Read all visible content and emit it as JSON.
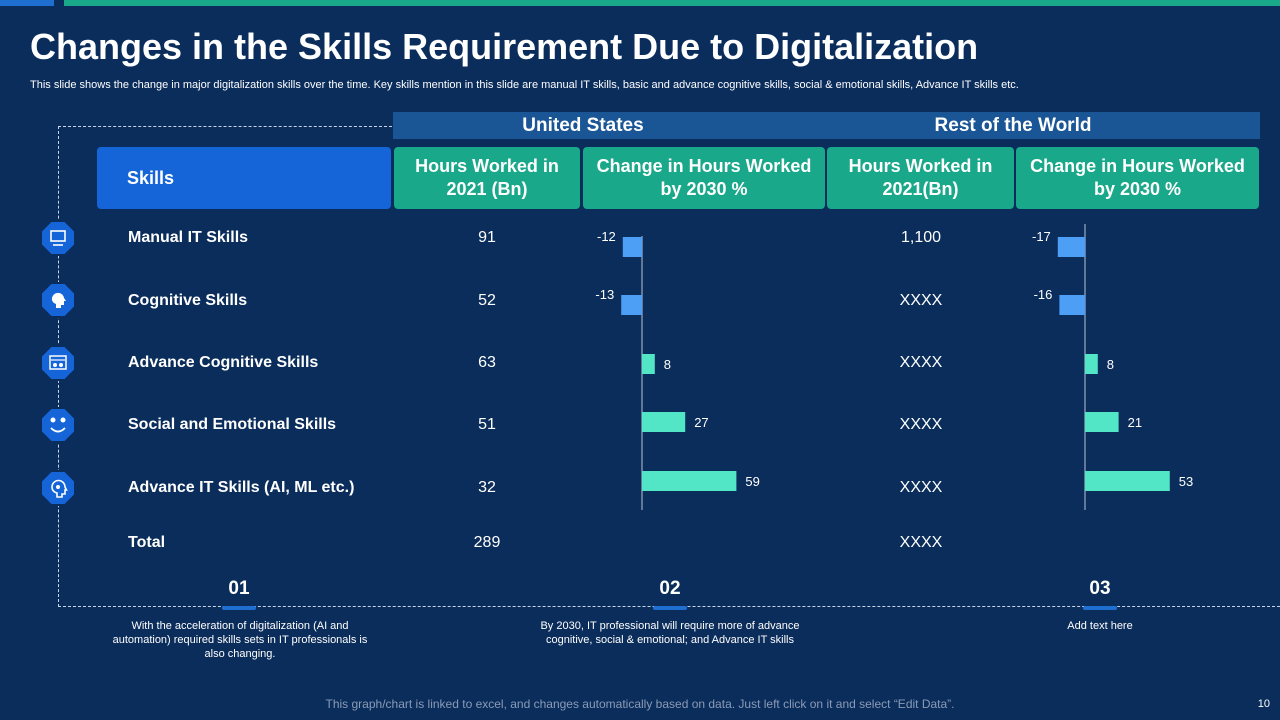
{
  "title": "Changes in the Skills Requirement Due to Digitalization",
  "subtitle": "This slide shows the change in major digitalization skills over the time. Key skills mention in this slide are manual IT skills, basic and advance cognitive skills, social & emotional skills, Advance IT skills etc.",
  "regions": {
    "us": "United States",
    "row": "Rest of the World"
  },
  "headers": {
    "skills": "Skills",
    "us_hours": "Hours Worked in 2021 (Bn)",
    "us_change": "Change in Hours Worked by 2030 %",
    "row_hours": "Hours Worked in 2021(Bn)",
    "row_change": "Change in Hours Worked by 2030 %"
  },
  "rows": [
    {
      "skill": "Manual IT Skills",
      "icon": "manual-it-icon",
      "us_hours": "91",
      "row_hours": "1,100"
    },
    {
      "skill": "Cognitive Skills",
      "icon": "brain-icon",
      "us_hours": "52",
      "row_hours": "XXXX"
    },
    {
      "skill": "Advance Cognitive Skills",
      "icon": "dashboard-icon",
      "us_hours": "63",
      "row_hours": "XXXX"
    },
    {
      "skill": "Social and Emotional Skills",
      "icon": "social-icon",
      "us_hours": "51",
      "row_hours": "XXXX"
    },
    {
      "skill": "Advance IT Skills (AI, ML etc.)",
      "icon": "ai-head-icon",
      "us_hours": "32",
      "row_hours": "XXXX"
    }
  ],
  "total": {
    "label": "Total",
    "us_hours": "289",
    "row_hours": "XXXX"
  },
  "chart_data": [
    {
      "type": "bar",
      "orientation": "horizontal",
      "title": "United States - Change in Hours Worked by 2030 %",
      "categories": [
        "Manual IT Skills",
        "Cognitive Skills",
        "Advance Cognitive Skills",
        "Social and Emotional Skills",
        "Advance IT Skills (AI, ML etc.)"
      ],
      "values": [
        -12,
        -13,
        8,
        27,
        59
      ],
      "colors": {
        "negative": "#4d9ff5",
        "positive": "#52e5c6"
      }
    },
    {
      "type": "bar",
      "orientation": "horizontal",
      "title": "Rest of the World - Change in Hours Worked by 2030 %",
      "categories": [
        "Manual IT Skills",
        "Cognitive Skills",
        "Advance Cognitive Skills",
        "Social and Emotional Skills",
        "Advance IT Skills (AI, ML etc.)"
      ],
      "values": [
        -17,
        -16,
        8,
        21,
        53
      ],
      "colors": {
        "negative": "#4d9ff5",
        "positive": "#52e5c6"
      }
    }
  ],
  "steps": [
    {
      "num": "01",
      "text": "With the acceleration of digitalization (AI and automation) required skills sets in IT professionals is also changing."
    },
    {
      "num": "02",
      "text": "By 2030, IT professional will require more of advance cognitive, social & emotional; and Advance IT skills"
    },
    {
      "num": "03",
      "text": "Add text here"
    }
  ],
  "footer": "This graph/chart is linked to excel, and changes automatically based on data. Just left click on it and select “Edit Data”.",
  "page_number": "10",
  "colors": {
    "background": "#0b2d5b",
    "teal": "#1aa88a",
    "blue": "#1565d8",
    "accent": "#1f6fd1"
  }
}
